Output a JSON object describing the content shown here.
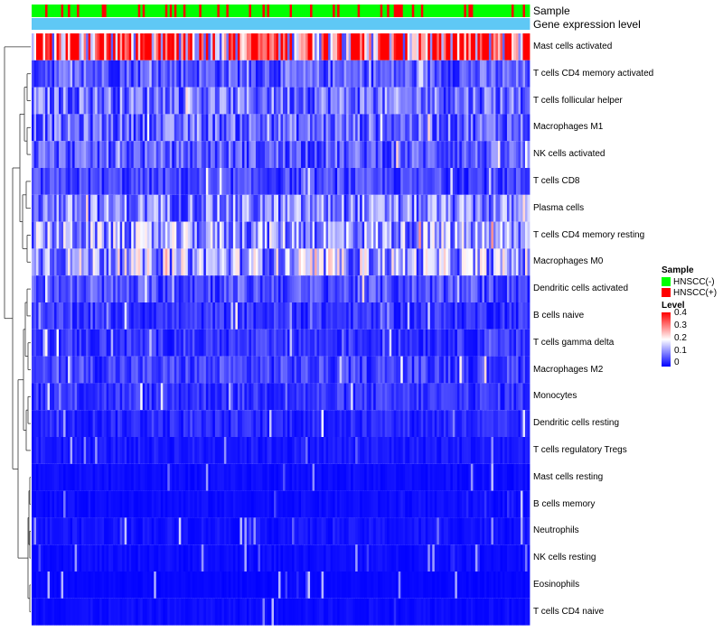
{
  "chart_data": {
    "type": "heatmap",
    "title": "",
    "column_annotations": [
      {
        "name": "Sample",
        "levels": [
          "HNSCC(-)",
          "HNSCC(+)"
        ],
        "colors": [
          "#00ff00",
          "#ff0000"
        ]
      },
      {
        "name": "Gene expression level",
        "colors": [
          "#5fc8f5"
        ]
      }
    ],
    "rows": [
      {
        "name": "Mast cells activated",
        "mean": 0.32
      },
      {
        "name": "T cells CD4 memory activated",
        "mean": 0.07
      },
      {
        "name": "T cells follicular helper",
        "mean": 0.09
      },
      {
        "name": "Macrophages M1",
        "mean": 0.08
      },
      {
        "name": "NK cells activated",
        "mean": 0.07
      },
      {
        "name": "T cells CD8",
        "mean": 0.05
      },
      {
        "name": "Plasma cells",
        "mean": 0.1
      },
      {
        "name": "T cells CD4 memory resting",
        "mean": 0.12
      },
      {
        "name": "Macrophages M0",
        "mean": 0.13
      },
      {
        "name": "Dendritic cells activated",
        "mean": 0.06
      },
      {
        "name": "B cells naive",
        "mean": 0.04
      },
      {
        "name": "T cells gamma delta",
        "mean": 0.04
      },
      {
        "name": "Macrophages M2",
        "mean": 0.05
      },
      {
        "name": "Monocytes",
        "mean": 0.04
      },
      {
        "name": "Dendritic cells resting",
        "mean": 0.03
      },
      {
        "name": "T cells regulatory  Tregs",
        "mean": 0.02
      },
      {
        "name": "Mast cells resting",
        "mean": 0.01
      },
      {
        "name": "B cells memory",
        "mean": 0.01
      },
      {
        "name": "Neutrophils",
        "mean": 0.015
      },
      {
        "name": "NK cells resting",
        "mean": 0.01
      },
      {
        "name": "Eosinophils",
        "mean": 0.005
      },
      {
        "name": "T cells CD4 naive",
        "mean": 0.01
      }
    ],
    "n_columns": 220,
    "legend": {
      "sample_title": "Sample",
      "sample_entries": [
        "HNSCC(-)",
        "HNSCC(+)"
      ],
      "level_title": "Level",
      "level_ticks": [
        "0.4",
        "0.3",
        "0.2",
        "0.1",
        "0"
      ],
      "level_range": [
        0,
        0.4
      ],
      "level_colors": [
        "#0000ff",
        "#ffffff",
        "#ff0000"
      ]
    },
    "row_dendrogram": true,
    "legend_position": "right"
  }
}
